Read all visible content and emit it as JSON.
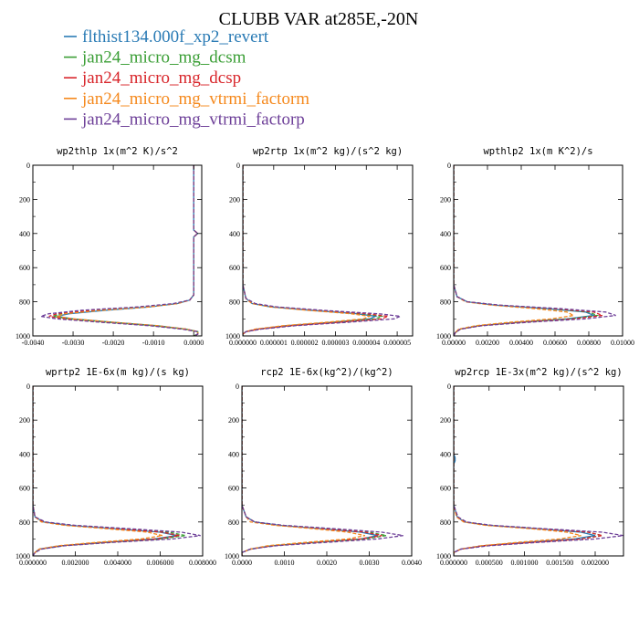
{
  "figure_title": "CLUBB VAR at285E,-20N",
  "series": [
    {
      "name": "flthist134.000f_xp2_revert",
      "color": "#2a7bb5",
      "dash": "solid"
    },
    {
      "name": "jan24_micro_mg_dcsm",
      "color": "#3a9e35",
      "dash": "dashed"
    },
    {
      "name": "jan24_micro_mg_dcsp",
      "color": "#d8262b",
      "dash": "dashed"
    },
    {
      "name": "jan24_micro_mg_vtrmi_factorm",
      "color": "#f5891d",
      "dash": "dashed"
    },
    {
      "name": "jan24_micro_mg_vtrmi_factorp",
      "color": "#6d3f98",
      "dash": "dashed"
    }
  ],
  "chart_data": [
    {
      "type": "line",
      "title": "wp2thlp  1x(m^2 K)/s^2",
      "xlim": [
        -0.004,
        0.0002
      ],
      "ylim": [
        1000,
        0
      ],
      "xticks": [
        -0.004,
        -0.003,
        -0.002,
        -0.001,
        0.0
      ],
      "xtick_labels": [
        "-0.0040",
        "-0.0030",
        "-0.0020",
        "-0.0010",
        "0.0000"
      ],
      "yticks": [
        0,
        200,
        400,
        600,
        800,
        1000
      ],
      "ytick_labels": [
        "0",
        "200",
        "400",
        "600",
        "800",
        "1000"
      ],
      "y": [
        0,
        100,
        200,
        300,
        380,
        400,
        420,
        500,
        600,
        700,
        760,
        790,
        810,
        830,
        850,
        870,
        885,
        900,
        920,
        940,
        960,
        975,
        990,
        1000
      ],
      "series": [
        {
          "name": "flthist134.000f_xp2_revert",
          "x": [
            0.0,
            0.0,
            0.0,
            0.0,
            0.0,
            0.0001,
            0.0,
            0.0,
            0.0,
            0.0,
            0.0,
            -0.0001,
            -0.0004,
            -0.0011,
            -0.0022,
            -0.0031,
            -0.0034,
            -0.003,
            -0.002,
            -0.0009,
            -0.0002,
            0.0001,
            0.0001,
            0.0
          ]
        },
        {
          "name": "jan24_micro_mg_dcsm",
          "x": [
            0.0,
            0.0,
            0.0,
            0.0,
            0.0,
            0.0001,
            0.0,
            0.0,
            0.0,
            0.0,
            0.0,
            -0.0001,
            -0.0004,
            -0.0012,
            -0.0024,
            -0.0033,
            -0.0035,
            -0.0031,
            -0.0021,
            -0.001,
            -0.0002,
            0.0001,
            0.0001,
            0.0
          ]
        },
        {
          "name": "jan24_micro_mg_dcsp",
          "x": [
            0.0,
            0.0,
            0.0,
            0.0,
            0.0,
            0.0001,
            0.0,
            0.0,
            0.0,
            0.0,
            0.0,
            -0.0001,
            -0.0004,
            -0.0012,
            -0.0025,
            -0.0034,
            -0.0036,
            -0.0032,
            -0.0021,
            -0.001,
            -0.0002,
            0.0001,
            0.0001,
            0.0
          ]
        },
        {
          "name": "jan24_micro_mg_vtrmi_factorm",
          "x": [
            0.0,
            0.0,
            0.0,
            0.0,
            0.0,
            0.0001,
            0.0,
            0.0,
            0.0,
            0.0,
            0.0,
            -0.0001,
            -0.0004,
            -0.0011,
            -0.0023,
            -0.0032,
            -0.0034,
            -0.003,
            -0.002,
            -0.0009,
            -0.0002,
            0.0001,
            0.0001,
            0.0
          ]
        },
        {
          "name": "jan24_micro_mg_vtrmi_factorp",
          "x": [
            0.0,
            0.0,
            0.0,
            0.0,
            0.0,
            0.0001,
            0.0,
            0.0,
            0.0,
            0.0,
            0.0,
            -0.0001,
            -0.0005,
            -0.0014,
            -0.0028,
            -0.0036,
            -0.0038,
            -0.0034,
            -0.0023,
            -0.0011,
            -0.0003,
            0.0001,
            0.0001,
            0.0
          ]
        }
      ]
    },
    {
      "type": "line",
      "title": "wp2rtp  1x(m^2 kg)/(s^2 kg)",
      "xlim": [
        0.0,
        5.5e-06
      ],
      "ylim": [
        1000,
        0
      ],
      "xticks": [
        0.0,
        1e-06,
        2e-06,
        3e-06,
        4e-06,
        5e-06
      ],
      "xtick_labels": [
        "0.000000",
        "0.000001",
        "0.000002",
        "0.000003",
        "0.000004",
        "0.000005"
      ],
      "yticks": [
        0,
        200,
        400,
        600,
        800,
        1000
      ],
      "ytick_labels": [
        "0",
        "200",
        "400",
        "600",
        "800",
        "1000"
      ],
      "y": [
        0,
        400,
        700,
        780,
        810,
        830,
        850,
        870,
        885,
        900,
        920,
        940,
        960,
        975,
        990,
        1000
      ],
      "series": [
        {
          "name": "flthist134.000f_xp2_revert",
          "x": [
            0.0,
            0.0,
            0.0,
            1e-07,
            3e-07,
            9e-07,
            2.2e-06,
            3.7e-06,
            4.3e-06,
            4.1e-06,
            2.9e-06,
            1.4e-06,
            5e-07,
            1e-07,
            0.0,
            0.0
          ]
        },
        {
          "name": "jan24_micro_mg_dcsm",
          "x": [
            0.0,
            0.0,
            0.0,
            1e-07,
            3e-07,
            9e-07,
            2.3e-06,
            3.9e-06,
            4.5e-06,
            4.3e-06,
            3e-06,
            1.5e-06,
            5e-07,
            1e-07,
            0.0,
            0.0
          ]
        },
        {
          "name": "jan24_micro_mg_dcsp",
          "x": [
            0.0,
            0.0,
            0.0,
            1e-07,
            3e-07,
            1e-06,
            2.4e-06,
            4e-06,
            4.7e-06,
            4.5e-06,
            3.1e-06,
            1.5e-06,
            5e-07,
            1e-07,
            0.0,
            0.0
          ]
        },
        {
          "name": "jan24_micro_mg_vtrmi_factorm",
          "x": [
            0.0,
            0.0,
            0.0,
            1e-07,
            3e-07,
            9e-07,
            2.1e-06,
            3.5e-06,
            4.1e-06,
            3.9e-06,
            2.7e-06,
            1.3e-06,
            4e-07,
            1e-07,
            0.0,
            0.0
          ]
        },
        {
          "name": "jan24_micro_mg_vtrmi_factorp",
          "x": [
            0.0,
            0.0,
            0.0,
            1e-07,
            4e-07,
            1.1e-06,
            2.6e-06,
            4.4e-06,
            5.1e-06,
            4.9e-06,
            3.4e-06,
            1.7e-06,
            6e-07,
            1e-07,
            0.0,
            0.0
          ]
        }
      ]
    },
    {
      "type": "line",
      "title": "wpthlp2  1x(m K^2)/s",
      "xlim": [
        0.0,
        0.01
      ],
      "ylim": [
        1000,
        0
      ],
      "xticks": [
        0.0,
        0.002,
        0.004,
        0.006,
        0.008,
        0.01
      ],
      "xtick_labels": [
        "0.00000",
        "0.00200",
        "0.00400",
        "0.00600",
        "0.00800",
        "0.01000"
      ],
      "yticks": [
        0,
        200,
        400,
        600,
        800,
        1000
      ],
      "ytick_labels": [
        "0",
        "200",
        "400",
        "600",
        "800",
        "1000"
      ],
      "y": [
        0,
        400,
        700,
        770,
        800,
        820,
        840,
        860,
        880,
        900,
        920,
        940,
        960,
        980,
        1000
      ],
      "series": [
        {
          "name": "flthist134.000f_xp2_revert",
          "x": [
            0.0,
            0.0,
            0.0,
            0.0002,
            0.0008,
            0.0025,
            0.0055,
            0.0078,
            0.0083,
            0.0067,
            0.0038,
            0.0015,
            0.0004,
            0.0001,
            0.0
          ]
        },
        {
          "name": "jan24_micro_mg_dcsm",
          "x": [
            0.0,
            0.0,
            0.0,
            0.0002,
            0.0008,
            0.0026,
            0.0057,
            0.008,
            0.0085,
            0.0069,
            0.0039,
            0.0015,
            0.0004,
            0.0001,
            0.0
          ]
        },
        {
          "name": "jan24_micro_mg_dcsp",
          "x": [
            0.0,
            0.0,
            0.0,
            0.0002,
            0.0008,
            0.0027,
            0.0059,
            0.0083,
            0.0088,
            0.0071,
            0.004,
            0.0016,
            0.0004,
            0.0001,
            0.0
          ]
        },
        {
          "name": "jan24_micro_mg_vtrmi_factorm",
          "x": [
            0.0,
            0.0,
            0.0,
            0.0002,
            0.0007,
            0.0023,
            0.0048,
            0.0067,
            0.0071,
            0.0058,
            0.0033,
            0.0013,
            0.0003,
            0.0001,
            0.0
          ]
        },
        {
          "name": "jan24_micro_mg_vtrmi_factorp",
          "x": [
            0.0,
            0.0,
            0.0,
            0.0002,
            0.0008,
            0.0028,
            0.0063,
            0.009,
            0.0096,
            0.0078,
            0.0044,
            0.0017,
            0.0004,
            0.0001,
            0.0
          ]
        }
      ]
    },
    {
      "type": "line",
      "title": "wprtp2  1E-6x(m kg)/(s kg)",
      "xlim": [
        0.0,
        0.008
      ],
      "ylim": [
        1000,
        0
      ],
      "xticks": [
        0.0,
        0.002,
        0.004,
        0.006,
        0.008
      ],
      "xtick_labels": [
        "0.000000",
        "0.002000",
        "0.004000",
        "0.006000",
        "0.008000"
      ],
      "yticks": [
        0,
        200,
        400,
        600,
        800,
        1000
      ],
      "ytick_labels": [
        "0",
        "200",
        "400",
        "600",
        "800",
        "1000"
      ],
      "y": [
        0,
        400,
        700,
        770,
        800,
        820,
        840,
        860,
        880,
        900,
        920,
        940,
        960,
        980,
        1000
      ],
      "series": [
        {
          "name": "flthist134.000f_xp2_revert",
          "x": [
            0.0,
            0.0,
            0.0,
            0.0001,
            0.0005,
            0.0017,
            0.0039,
            0.006,
            0.0068,
            0.0057,
            0.0033,
            0.0013,
            0.0003,
            0.0001,
            0.0
          ]
        },
        {
          "name": "jan24_micro_mg_dcsm",
          "x": [
            0.0,
            0.0,
            0.0,
            0.0001,
            0.0005,
            0.0018,
            0.0042,
            0.0064,
            0.0072,
            0.006,
            0.0035,
            0.0014,
            0.0003,
            0.0001,
            0.0
          ]
        },
        {
          "name": "jan24_micro_mg_dcsp",
          "x": [
            0.0,
            0.0,
            0.0,
            0.0001,
            0.0005,
            0.0017,
            0.004,
            0.0061,
            0.0069,
            0.0058,
            0.0033,
            0.0013,
            0.0003,
            0.0001,
            0.0
          ]
        },
        {
          "name": "jan24_micro_mg_vtrmi_factorm",
          "x": [
            0.0,
            0.0,
            0.0,
            0.0001,
            0.0004,
            0.0015,
            0.0035,
            0.0054,
            0.0061,
            0.0051,
            0.003,
            0.0012,
            0.0003,
            0.0001,
            0.0
          ]
        },
        {
          "name": "jan24_micro_mg_vtrmi_factorp",
          "x": [
            0.0,
            0.0,
            0.0,
            0.0001,
            0.0006,
            0.002,
            0.0046,
            0.007,
            0.0079,
            0.0066,
            0.0038,
            0.0015,
            0.0004,
            0.0001,
            0.0
          ]
        }
      ]
    },
    {
      "type": "line",
      "title": "rcp2  1E-6x(kg^2)/(kg^2)",
      "xlim": [
        0.0,
        0.004
      ],
      "ylim": [
        1000,
        0
      ],
      "xticks": [
        0.0,
        0.001,
        0.002,
        0.003,
        0.004
      ],
      "xtick_labels": [
        "0.0000",
        "0.0010",
        "0.0020",
        "0.0030",
        "0.0040"
      ],
      "yticks": [
        0,
        200,
        400,
        600,
        800,
        1000
      ],
      "ytick_labels": [
        "0",
        "200",
        "400",
        "600",
        "800",
        "1000"
      ],
      "y": [
        0,
        400,
        700,
        770,
        800,
        820,
        840,
        860,
        880,
        900,
        920,
        940,
        960,
        980,
        1000
      ],
      "series": [
        {
          "name": "flthist134.000f_xp2_revert",
          "x": [
            0.0,
            0.0,
            0.0,
            0.0001,
            0.0003,
            0.0009,
            0.0019,
            0.0028,
            0.0032,
            0.0028,
            0.0017,
            0.0007,
            0.0002,
            0.0,
            0.0
          ]
        },
        {
          "name": "jan24_micro_mg_dcsm",
          "x": [
            0.0,
            0.0,
            0.0,
            0.0001,
            0.0003,
            0.0009,
            0.002,
            0.003,
            0.0034,
            0.0029,
            0.0018,
            0.0007,
            0.0002,
            0.0,
            0.0
          ]
        },
        {
          "name": "jan24_micro_mg_dcsp",
          "x": [
            0.0,
            0.0,
            0.0,
            0.0001,
            0.0003,
            0.0009,
            0.0019,
            0.0029,
            0.0033,
            0.0028,
            0.0017,
            0.0007,
            0.0002,
            0.0,
            0.0
          ]
        },
        {
          "name": "jan24_micro_mg_vtrmi_factorm",
          "x": [
            0.0,
            0.0,
            0.0,
            0.0001,
            0.0002,
            0.0008,
            0.0017,
            0.0025,
            0.0029,
            0.0025,
            0.0015,
            0.0006,
            0.0002,
            0.0,
            0.0
          ]
        },
        {
          "name": "jan24_micro_mg_vtrmi_factorp",
          "x": [
            0.0,
            0.0,
            0.0,
            0.0001,
            0.0003,
            0.001,
            0.0022,
            0.0033,
            0.0038,
            0.0032,
            0.002,
            0.0008,
            0.0002,
            0.0,
            0.0
          ]
        }
      ]
    },
    {
      "type": "line",
      "title": "wp2rcp  1E-3x(m^2 kg)/(s^2 kg)",
      "xlim": [
        0.0,
        0.0024
      ],
      "ylim": [
        1000,
        0
      ],
      "xticks": [
        0.0,
        0.0005,
        0.001,
        0.0015,
        0.002
      ],
      "xtick_labels": [
        "0.000000",
        "0.000500",
        "0.001000",
        "0.001500",
        "0.002000"
      ],
      "yticks": [
        0,
        200,
        400,
        600,
        800,
        1000
      ],
      "ytick_labels": [
        "0",
        "200",
        "400",
        "600",
        "800",
        "1000"
      ],
      "y": [
        0,
        400,
        420,
        440,
        460,
        700,
        770,
        800,
        820,
        840,
        860,
        880,
        900,
        920,
        940,
        960,
        980,
        1000
      ],
      "series": [
        {
          "name": "flthist134.000f_xp2_revert",
          "x": [
            0.0,
            0.0,
            2e-05,
            2e-05,
            0.0,
            0.0,
            5e-05,
            0.00015,
            0.0005,
            0.0012,
            0.0018,
            0.002,
            0.0017,
            0.001,
            0.0004,
            0.0001,
            0.0,
            0.0
          ]
        },
        {
          "name": "jan24_micro_mg_dcsm",
          "x": [
            0.0,
            0.0,
            0.0,
            0.0,
            0.0,
            0.0,
            5e-05,
            0.00016,
            0.0005,
            0.0012,
            0.0019,
            0.0021,
            0.0018,
            0.0011,
            0.0004,
            0.0001,
            0.0,
            0.0
          ]
        },
        {
          "name": "jan24_micro_mg_dcsp",
          "x": [
            0.0,
            0.0,
            0.0,
            0.0,
            0.0,
            0.0,
            5e-05,
            0.00016,
            0.0005,
            0.0012,
            0.0019,
            0.0021,
            0.0018,
            0.0011,
            0.0004,
            0.0001,
            0.0,
            0.0
          ]
        },
        {
          "name": "jan24_micro_mg_vtrmi_factorm",
          "x": [
            0.0,
            0.0,
            0.0,
            0.0,
            0.0,
            0.0,
            4e-05,
            0.00014,
            0.00045,
            0.0011,
            0.0016,
            0.0018,
            0.0015,
            0.0009,
            0.0004,
            0.0001,
            0.0,
            0.0
          ]
        },
        {
          "name": "jan24_micro_mg_vtrmi_factorp",
          "x": [
            0.0,
            0.0,
            0.0,
            0.0,
            0.0,
            0.0,
            6e-05,
            0.00018,
            0.00055,
            0.0013,
            0.0021,
            0.0024,
            0.002,
            0.0012,
            0.0005,
            0.0001,
            0.0,
            0.0
          ]
        }
      ]
    }
  ]
}
